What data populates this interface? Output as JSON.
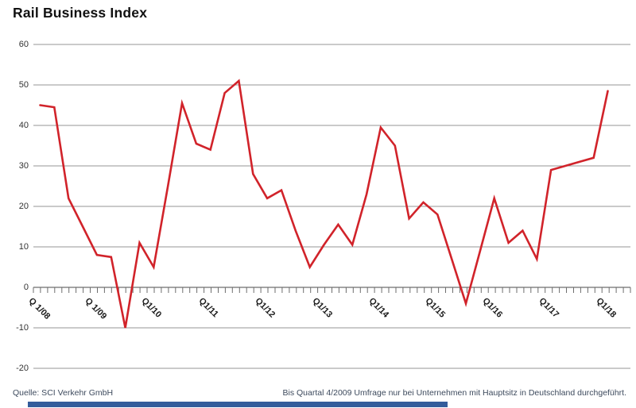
{
  "title": "Rail Business Index",
  "footer": {
    "source": "Quelle: SCI Verkehr GmbH",
    "note": "Bis Quartal 4/2009 Umfrage nur bei Unternehmen mit Hauptsitz in Deutschland durchgeführt."
  },
  "colors": {
    "line": "#d1232a",
    "grid": "#949494",
    "axis": "#6e6e6e",
    "tick": "#6e6e6e",
    "bottom_bar": "#335c9b"
  },
  "chart_data": {
    "type": "line",
    "title": "Rail Business Index",
    "x": [
      "Q1/08",
      "Q2/08",
      "Q3/08",
      "Q4/08",
      "Q1/09",
      "Q2/09",
      "Q3/09",
      "Q4/09",
      "Q1/10",
      "Q2/10",
      "Q3/10",
      "Q4/10",
      "Q1/11",
      "Q2/11",
      "Q3/11",
      "Q4/11",
      "Q1/12",
      "Q2/12",
      "Q3/12",
      "Q4/12",
      "Q1/13",
      "Q2/13",
      "Q3/13",
      "Q4/13",
      "Q1/14",
      "Q2/14",
      "Q3/14",
      "Q4/14",
      "Q1/15",
      "Q2/15",
      "Q3/15",
      "Q4/15",
      "Q1/16",
      "Q2/16",
      "Q3/16",
      "Q4/16",
      "Q1/17",
      "Q2/17",
      "Q3/17",
      "Q4/17",
      "Q1/18"
    ],
    "values": [
      45,
      44.5,
      22,
      15,
      8,
      7.5,
      -10,
      11,
      5,
      25,
      45.5,
      35.5,
      34,
      48,
      51,
      28,
      22,
      24,
      14,
      5,
      10.5,
      15.5,
      10.5,
      23,
      39.5,
      35,
      17,
      21,
      18,
      7,
      -4,
      9,
      22,
      11,
      14,
      7,
      29,
      30,
      31,
      32,
      48.5
    ],
    "x_tick_labels": [
      "Q 1/08",
      "Q 1/09",
      "Q1/10",
      "Q1/11",
      "Q1/12",
      "Q1/13",
      "Q1/14",
      "Q1/15",
      "Q1/16",
      "Q1/17",
      "Q1/18"
    ],
    "x_tick_every": 4,
    "ylim": [
      -20,
      60
    ],
    "ytick_step": 10,
    "yticks": [
      60,
      50,
      40,
      30,
      20,
      10,
      0,
      -10,
      -20
    ],
    "grid": "horizontal-only",
    "legend": "none",
    "series_name": "Rail Business Index",
    "line_width": 2.6
  }
}
